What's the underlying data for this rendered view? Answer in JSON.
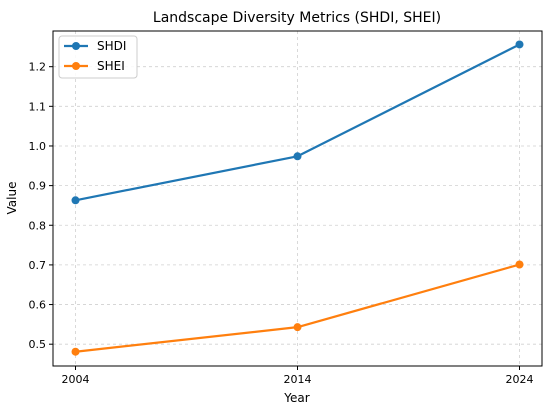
{
  "chart_data": {
    "type": "line",
    "title": "Landscape Diversity Metrics (SHDI, SHEI)",
    "xlabel": "Year",
    "ylabel": "Value",
    "x": [
      2004,
      2014,
      2024
    ],
    "x_ticks": [
      "2004",
      "2014",
      "2024"
    ],
    "y_ticks": [
      "0.5",
      "0.6",
      "0.7",
      "0.8",
      "0.9",
      "1.0",
      "1.1",
      "1.2"
    ],
    "ylim": [
      0.445,
      1.29
    ],
    "grid": true,
    "legend_position": "top-left",
    "series": [
      {
        "name": "SHDI",
        "color": "#1f77b4",
        "values": [
          0.863,
          0.974,
          1.256
        ]
      },
      {
        "name": "SHEI",
        "color": "#ff7f0e",
        "values": [
          0.481,
          0.543,
          0.701
        ]
      }
    ]
  }
}
